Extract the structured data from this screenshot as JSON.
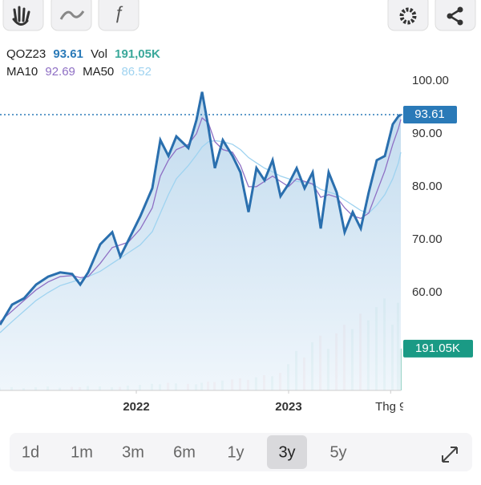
{
  "chart_data": {
    "type": "line",
    "symbol": "QOZ23",
    "volume_caption": "Vol",
    "volume_legend_label": "191,05K",
    "volume_tag_label": "191.05K",
    "x": [
      2021.105,
      2021.184,
      2021.263,
      2021.342,
      2021.421,
      2021.5,
      2021.579,
      2021.632,
      2021.684,
      2021.763,
      2021.842,
      2021.895,
      2021.947,
      2022.026,
      2022.105,
      2022.158,
      2022.211,
      2022.263,
      2022.342,
      2022.395,
      2022.432,
      2022.474,
      2022.516,
      2022.568,
      2022.632,
      2022.684,
      2022.737,
      2022.789,
      2022.842,
      2022.895,
      2022.947,
      2023.0,
      2023.053,
      2023.105,
      2023.158,
      2023.211,
      2023.263,
      2023.316,
      2023.368,
      2023.421,
      2023.474,
      2023.526,
      2023.579,
      2023.632,
      2023.684,
      2023.721,
      2023.737
    ],
    "series": [
      {
        "name": "QOZ23",
        "color": "#2a6fae",
        "values": [
          53.9,
          57.7,
          58.9,
          61.5,
          63.0,
          63.8,
          63.5,
          61.5,
          63.8,
          69.1,
          71.4,
          66.8,
          69.8,
          74.4,
          79.7,
          88.8,
          85.8,
          89.5,
          87.3,
          92.6,
          97.9,
          91.1,
          83.5,
          88.8,
          85.8,
          82.7,
          75.2,
          83.5,
          81.2,
          85.0,
          78.2,
          80.5,
          83.5,
          79.7,
          82.7,
          72.1,
          82.7,
          78.9,
          71.4,
          75.2,
          72.1,
          78.9,
          85.0,
          85.8,
          91.8,
          93.3,
          93.61
        ]
      },
      {
        "name": "MA10",
        "color": "#8e6fc4",
        "values": [
          54.5,
          56.5,
          58.5,
          60.5,
          62,
          63,
          63.2,
          62.8,
          63,
          65.5,
          68.5,
          69,
          69.5,
          72,
          76,
          82,
          85,
          87,
          88,
          90,
          93,
          92,
          88.5,
          87,
          86.5,
          84,
          80,
          80,
          81,
          82,
          81,
          80,
          81.5,
          81,
          80.5,
          78,
          78.5,
          78,
          76,
          74.5,
          74,
          75,
          79,
          83,
          88,
          91,
          92.69
        ]
      },
      {
        "name": "MA50",
        "color": "#9fd3f0",
        "values": [
          52.4,
          54.5,
          56.5,
          58.5,
          60,
          61.3,
          62,
          62.5,
          63,
          64,
          65.5,
          66.5,
          67.5,
          69,
          71.5,
          75,
          78.5,
          81.5,
          84,
          86,
          87.5,
          88.5,
          88.7,
          88.5,
          88,
          87,
          85.5,
          84.5,
          83.5,
          82.8,
          82,
          81.5,
          81,
          80.8,
          80.5,
          79.5,
          79,
          78.5,
          77.5,
          76.5,
          75.5,
          75,
          76.5,
          78.5,
          81.5,
          84.5,
          86.52
        ]
      },
      {
        "name": "Vol",
        "axis": "y2",
        "values": [
          12,
          15,
          10,
          14,
          18,
          12,
          16,
          15,
          20,
          18,
          14,
          16,
          22,
          25,
          30,
          28,
          35,
          32,
          30,
          28,
          35,
          40,
          38,
          45,
          50,
          55,
          48,
          60,
          70,
          65,
          80,
          120,
          180,
          150,
          220,
          250,
          190,
          260,
          300,
          280,
          350,
          320,
          380,
          420,
          300,
          400,
          191.05
        ]
      }
    ],
    "xlim": [
      2021.105,
      2023.737
    ],
    "xticks": [
      {
        "value": 2022,
        "label": "2022"
      },
      {
        "value": 2023,
        "label": "2023"
      },
      {
        "value": 2023.67,
        "label": "Thg 9"
      }
    ],
    "ylim": [
      41.5,
      107.7
    ],
    "yticks": [
      {
        "value": 60,
        "label": "60.00"
      },
      {
        "value": 70,
        "label": "70.00"
      },
      {
        "value": 80,
        "label": "80.00"
      },
      {
        "value": 90,
        "label": "90.00"
      },
      {
        "value": 100,
        "label": "100.00"
      }
    ],
    "y2lim": [
      0,
      1600
    ],
    "ranges": [
      "1d",
      "1m",
      "3m",
      "6m",
      "1y",
      "3y",
      "5y"
    ],
    "selected_range": "3y"
  }
}
